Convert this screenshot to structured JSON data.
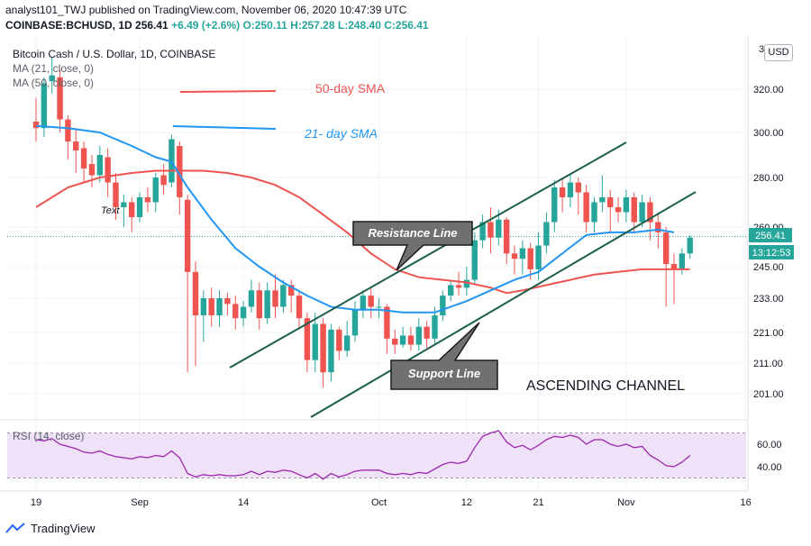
{
  "header": {
    "line1": "analyst101_TWJ published on TradingView.com, November 06, 2020 10:47:39 UTC",
    "symbol": "COINBASE:BCHUSD, 1D",
    "last": "256.41",
    "ohlc": "+6.49 (+2.6%) O:250.11 H:257.28 L:248.40 C:256.41"
  },
  "legend": {
    "title": "Bitcoin Cash / U.S. Dollar, 1D, COINBASE",
    "ma21": "MA (21, close, 0)",
    "ma50": "MA (50, close, 0)"
  },
  "currency_badge": "USD",
  "annotations": {
    "sma50_label": "50-day SMA",
    "sma21_label": "21- day SMA",
    "resistance": "Resistance Line",
    "support": "Support Line",
    "channel": "ASCENDING CHANNEL",
    "text_tag": "Text"
  },
  "rsi": {
    "title": "RSI (14, close)"
  },
  "footer": {
    "brand": "TradingView"
  },
  "colors": {
    "up": "#26a69a",
    "down": "#ef5350",
    "ma21": "#2196f3",
    "ma50": "#ef5350",
    "channel": "#1b5e4a",
    "rsi_line": "#9c27b0",
    "rsi_band": "#efe1f7"
  },
  "chart_data": {
    "type": "candlestick",
    "symbol": "BCHUSD",
    "interval": "1D",
    "y_ticks": [
      201,
      211,
      221,
      233,
      245,
      260,
      280,
      300,
      320
    ],
    "y_tick_labels": [
      "201.00",
      "211.00",
      "221.00",
      "233.00",
      "245.00",
      "260.00",
      "280.00",
      "300.00",
      "320.00"
    ],
    "top_tick_partial": "3",
    "x_tick_labels": [
      {
        "label": "19",
        "day": 0
      },
      {
        "label": "Sep",
        "day": 13
      },
      {
        "label": "14",
        "day": 26
      },
      {
        "label": "Oct",
        "day": 43
      },
      {
        "label": "12",
        "day": 54
      },
      {
        "label": "21",
        "day": 63
      },
      {
        "label": "Nov",
        "day": 74
      },
      {
        "label": "16",
        "day": 89
      }
    ],
    "last_price_label": "256.41",
    "countdown_label": "13:12:53",
    "candles": [
      [
        0,
        305,
        302,
        316,
        296
      ],
      [
        1,
        302,
        323,
        326,
        298
      ],
      [
        2,
        324,
        327,
        336,
        318
      ],
      [
        3,
        326,
        306,
        330,
        300
      ],
      [
        4,
        306,
        296,
        308,
        288
      ],
      [
        5,
        296,
        292,
        302,
        282
      ],
      [
        6,
        293,
        284,
        296,
        278
      ],
      [
        7,
        286,
        281,
        290,
        276
      ],
      [
        8,
        281,
        290,
        294,
        278
      ],
      [
        9,
        289,
        278,
        293,
        272
      ],
      [
        10,
        278,
        268,
        282,
        263
      ],
      [
        11,
        268,
        270,
        273,
        260
      ],
      [
        12,
        270,
        264,
        272,
        258
      ],
      [
        13,
        264,
        272,
        274,
        262
      ],
      [
        14,
        272,
        270,
        276,
        266
      ],
      [
        15,
        270,
        280,
        282,
        266
      ],
      [
        16,
        281,
        277,
        286,
        273
      ],
      [
        17,
        278,
        297,
        299,
        276
      ],
      [
        18,
        294,
        272,
        296,
        265
      ],
      [
        19,
        271,
        243,
        273,
        208
      ],
      [
        20,
        243,
        227,
        247,
        210
      ],
      [
        21,
        227,
        233,
        236,
        218
      ],
      [
        22,
        233,
        227,
        237,
        223
      ],
      [
        23,
        227,
        233,
        236,
        223
      ],
      [
        24,
        233,
        231,
        235,
        227
      ],
      [
        25,
        231,
        226,
        234,
        222
      ],
      [
        26,
        226,
        230,
        232,
        223
      ],
      [
        27,
        230,
        236,
        240,
        228
      ],
      [
        28,
        236,
        226,
        239,
        222
      ],
      [
        29,
        226,
        236,
        239,
        224
      ],
      [
        30,
        236,
        230,
        242,
        226
      ],
      [
        31,
        230,
        238,
        240,
        228
      ],
      [
        32,
        238,
        234,
        240,
        228
      ],
      [
        33,
        234,
        226,
        236,
        222
      ],
      [
        34,
        226,
        212,
        228,
        208
      ],
      [
        35,
        212,
        224,
        228,
        208
      ],
      [
        36,
        224,
        208,
        226,
        203
      ],
      [
        37,
        208,
        222,
        224,
        205
      ],
      [
        38,
        222,
        215,
        223,
        212
      ],
      [
        39,
        215,
        220,
        225,
        213
      ],
      [
        40,
        220,
        229,
        232,
        218
      ],
      [
        41,
        229,
        234,
        236,
        226
      ],
      [
        42,
        234,
        230,
        237,
        226
      ],
      [
        43,
        230,
        230,
        233,
        226
      ],
      [
        44,
        230,
        219,
        231,
        214
      ],
      [
        45,
        219,
        217,
        222,
        214
      ],
      [
        46,
        217,
        220,
        223,
        216
      ],
      [
        47,
        220,
        217,
        223,
        215
      ],
      [
        48,
        217,
        223,
        226,
        215
      ],
      [
        49,
        223,
        219,
        225,
        216
      ],
      [
        50,
        219,
        227,
        230,
        217
      ],
      [
        51,
        227,
        234,
        236,
        225
      ],
      [
        52,
        234,
        238,
        240,
        232
      ],
      [
        53,
        238,
        237,
        243,
        234
      ],
      [
        54,
        237,
        240,
        245,
        234
      ],
      [
        55,
        240,
        255,
        258,
        238
      ],
      [
        56,
        255,
        262,
        265,
        252
      ],
      [
        57,
        262,
        256,
        268,
        250
      ],
      [
        58,
        256,
        263,
        267,
        253
      ],
      [
        59,
        263,
        250,
        264,
        246
      ],
      [
        60,
        250,
        248,
        253,
        242
      ],
      [
        61,
        248,
        252,
        255,
        242
      ],
      [
        62,
        252,
        244,
        254,
        240
      ],
      [
        63,
        244,
        253,
        258,
        240
      ],
      [
        64,
        253,
        262,
        266,
        250
      ],
      [
        65,
        262,
        276,
        279,
        258
      ],
      [
        66,
        276,
        272,
        280,
        266
      ],
      [
        67,
        272,
        278,
        282,
        268
      ],
      [
        68,
        278,
        274,
        280,
        265
      ],
      [
        69,
        274,
        262,
        277,
        258
      ],
      [
        70,
        262,
        270,
        272,
        258
      ],
      [
        71,
        270,
        272,
        281,
        266
      ],
      [
        72,
        272,
        268,
        275,
        258
      ],
      [
        73,
        268,
        266,
        272,
        262
      ],
      [
        74,
        266,
        272,
        275,
        262
      ],
      [
        75,
        272,
        262,
        274,
        258
      ],
      [
        76,
        262,
        270,
        273,
        260
      ],
      [
        77,
        270,
        262,
        272,
        255
      ],
      [
        78,
        262,
        258,
        266,
        252
      ],
      [
        79,
        258,
        246,
        260,
        230
      ],
      [
        80,
        246,
        244,
        250,
        231
      ],
      [
        81,
        244,
        250,
        252,
        242
      ],
      [
        82,
        250,
        256,
        257,
        248
      ]
    ],
    "ma21": [
      [
        0,
        303
      ],
      [
        4,
        302
      ],
      [
        8,
        300
      ],
      [
        12,
        294
      ],
      [
        15,
        289
      ],
      [
        17,
        287
      ],
      [
        19,
        276
      ],
      [
        22,
        263
      ],
      [
        25,
        252
      ],
      [
        28,
        245
      ],
      [
        31,
        239
      ],
      [
        34,
        234
      ],
      [
        37,
        230
      ],
      [
        40,
        229
      ],
      [
        43,
        229
      ],
      [
        46,
        228
      ],
      [
        50,
        228
      ],
      [
        54,
        232
      ],
      [
        57,
        236
      ],
      [
        60,
        240
      ],
      [
        63,
        243
      ],
      [
        66,
        250
      ],
      [
        69,
        257
      ],
      [
        72,
        258
      ],
      [
        75,
        258
      ],
      [
        78,
        259
      ],
      [
        80,
        258
      ]
    ],
    "ma50": [
      [
        0,
        268
      ],
      [
        4,
        276
      ],
      [
        8,
        280
      ],
      [
        12,
        282
      ],
      [
        15,
        283
      ],
      [
        18,
        283
      ],
      [
        21,
        283
      ],
      [
        24,
        282
      ],
      [
        27,
        280
      ],
      [
        30,
        277
      ],
      [
        33,
        272
      ],
      [
        36,
        265
      ],
      [
        39,
        258
      ],
      [
        42,
        250
      ],
      [
        45,
        244
      ],
      [
        48,
        241
      ],
      [
        51,
        240
      ],
      [
        54,
        239
      ],
      [
        57,
        237
      ],
      [
        59,
        235
      ],
      [
        61,
        236
      ],
      [
        64,
        238
      ],
      [
        67,
        240
      ],
      [
        70,
        242
      ],
      [
        73,
        243
      ],
      [
        76,
        244
      ],
      [
        79,
        244
      ],
      [
        82,
        244
      ]
    ],
    "rsi": {
      "y_ticks": [
        40,
        60
      ],
      "y_tick_labels": [
        "40.00",
        "60.00"
      ],
      "band": [
        30,
        70
      ],
      "values": [
        [
          0,
          64
        ],
        [
          1,
          63
        ],
        [
          2,
          65
        ],
        [
          3,
          60
        ],
        [
          4,
          58
        ],
        [
          5,
          56
        ],
        [
          6,
          53
        ],
        [
          7,
          52
        ],
        [
          8,
          54
        ],
        [
          9,
          51
        ],
        [
          10,
          49
        ],
        [
          11,
          48
        ],
        [
          12,
          47
        ],
        [
          13,
          49
        ],
        [
          14,
          48
        ],
        [
          15,
          50
        ],
        [
          16,
          49
        ],
        [
          17,
          54
        ],
        [
          18,
          48
        ],
        [
          19,
          34
        ],
        [
          20,
          31
        ],
        [
          21,
          33
        ],
        [
          22,
          32
        ],
        [
          23,
          33
        ],
        [
          24,
          32
        ],
        [
          25,
          32
        ],
        [
          26,
          33
        ],
        [
          27,
          36
        ],
        [
          28,
          33
        ],
        [
          29,
          36
        ],
        [
          30,
          35
        ],
        [
          31,
          37
        ],
        [
          32,
          36
        ],
        [
          33,
          33
        ],
        [
          34,
          30
        ],
        [
          35,
          34
        ],
        [
          36,
          29
        ],
        [
          37,
          34
        ],
        [
          38,
          31
        ],
        [
          39,
          33
        ],
        [
          40,
          36
        ],
        [
          41,
          37
        ],
        [
          42,
          37
        ],
        [
          43,
          37
        ],
        [
          44,
          34
        ],
        [
          45,
          33
        ],
        [
          46,
          34
        ],
        [
          47,
          33
        ],
        [
          48,
          35
        ],
        [
          49,
          34
        ],
        [
          50,
          38
        ],
        [
          51,
          42
        ],
        [
          52,
          44
        ],
        [
          53,
          43
        ],
        [
          54,
          45
        ],
        [
          55,
          57
        ],
        [
          56,
          67
        ],
        [
          57,
          70
        ],
        [
          58,
          72
        ],
        [
          59,
          62
        ],
        [
          60,
          57
        ],
        [
          61,
          59
        ],
        [
          62,
          55
        ],
        [
          63,
          59
        ],
        [
          64,
          64
        ],
        [
          65,
          67
        ],
        [
          66,
          66
        ],
        [
          67,
          68
        ],
        [
          68,
          66
        ],
        [
          69,
          60
        ],
        [
          70,
          64
        ],
        [
          71,
          64
        ],
        [
          72,
          60
        ],
        [
          73,
          58
        ],
        [
          74,
          60
        ],
        [
          75,
          57
        ],
        [
          76,
          58
        ],
        [
          77,
          50
        ],
        [
          78,
          46
        ],
        [
          79,
          41
        ],
        [
          80,
          40
        ],
        [
          81,
          44
        ],
        [
          82,
          50
        ]
      ]
    }
  }
}
